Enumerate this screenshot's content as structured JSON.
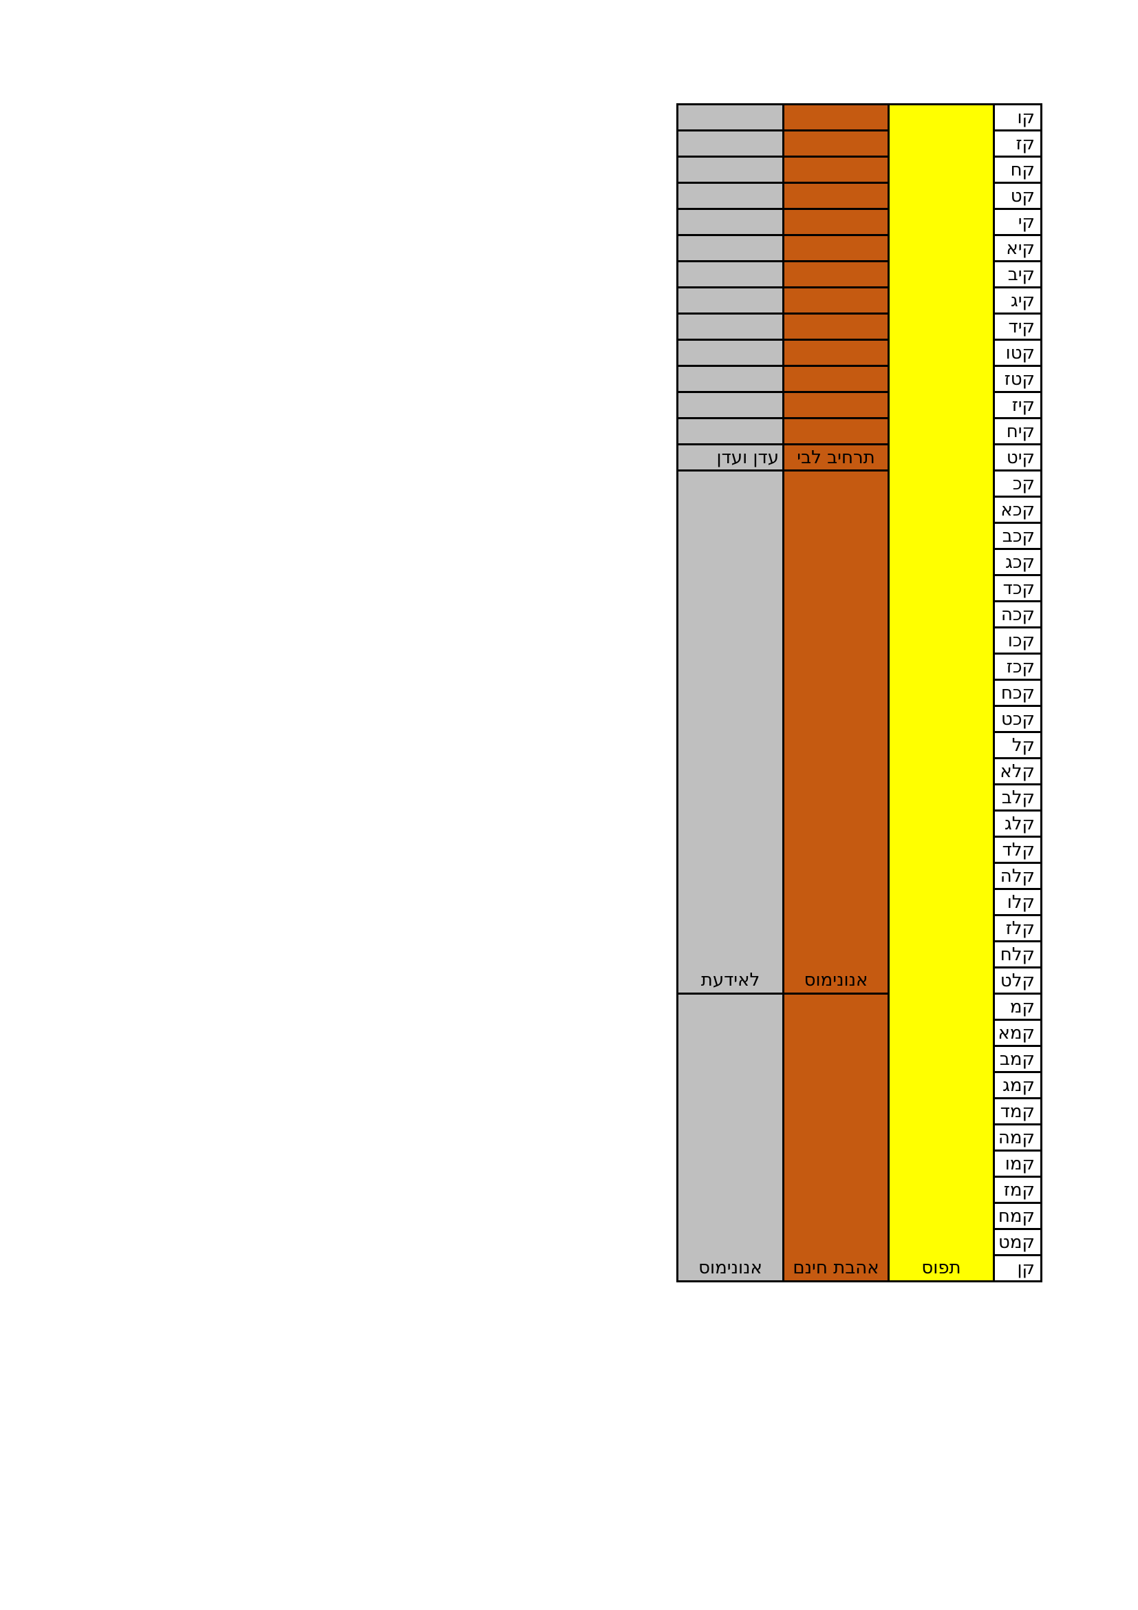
{
  "page": {
    "bg_color": "#FFFFFF"
  },
  "table": {
    "border_color": "#000000",
    "index_bg_color": "#FFFFFF",
    "gray_color": "#BFBFBF",
    "orange_color": "#C55A11",
    "yellow_color": "#FFFF00",
    "columns": [
      {
        "id": "gray-name-column",
        "bg": "#BFBFBF",
        "cells": [
          {
            "repeat": 13,
            "span": 1,
            "label": ""
          },
          {
            "span": 1,
            "label": "עדן ועדן",
            "align": "right",
            "valign": "middle"
          },
          {
            "span": 20,
            "label": "לאידעת",
            "align": "center",
            "valign": "bottom"
          },
          {
            "span": 11,
            "label": "אנונימוס",
            "align": "center",
            "valign": "bottom"
          }
        ]
      },
      {
        "id": "orange-name-column",
        "bg": "#C55A11",
        "cells": [
          {
            "repeat": 13,
            "span": 1,
            "label": ""
          },
          {
            "span": 1,
            "label": "תרחיב לבי",
            "align": "center",
            "valign": "middle"
          },
          {
            "span": 20,
            "label": "אנונימוס",
            "align": "center",
            "valign": "bottom"
          },
          {
            "span": 11,
            "label": "אהבת חינם",
            "align": "center",
            "valign": "bottom"
          }
        ]
      },
      {
        "id": "yellow-status-column",
        "bg": "#FFFF00",
        "cells": [
          {
            "span": 45,
            "label": "תפוס",
            "align": "center",
            "valign": "bottom"
          }
        ]
      },
      {
        "id": "psalm-index-column",
        "bg": "#FFFFFF",
        "cells": [
          {
            "each": [
              "קו",
              "קז",
              "קח",
              "קט",
              "קי",
              "קיא",
              "קיב",
              "קיג",
              "קיד",
              "קטו",
              "קטז",
              "קיז",
              "קיח",
              "קיט",
              "קכ",
              "קכא",
              "קכב",
              "קכג",
              "קכד",
              "קכה",
              "קכו",
              "קכז",
              "קכח",
              "קכט",
              "קל",
              "קלא",
              "קלב",
              "קלג",
              "קלד",
              "קלה",
              "קלו",
              "קלז",
              "קלח",
              "קלט",
              "קמ",
              "קמא",
              "קמב",
              "קמג",
              "קמד",
              "קמה",
              "קמו",
              "קמז",
              "קמח",
              "קמט",
              "קן"
            ],
            "align": "right",
            "valign": "middle"
          }
        ]
      }
    ]
  }
}
